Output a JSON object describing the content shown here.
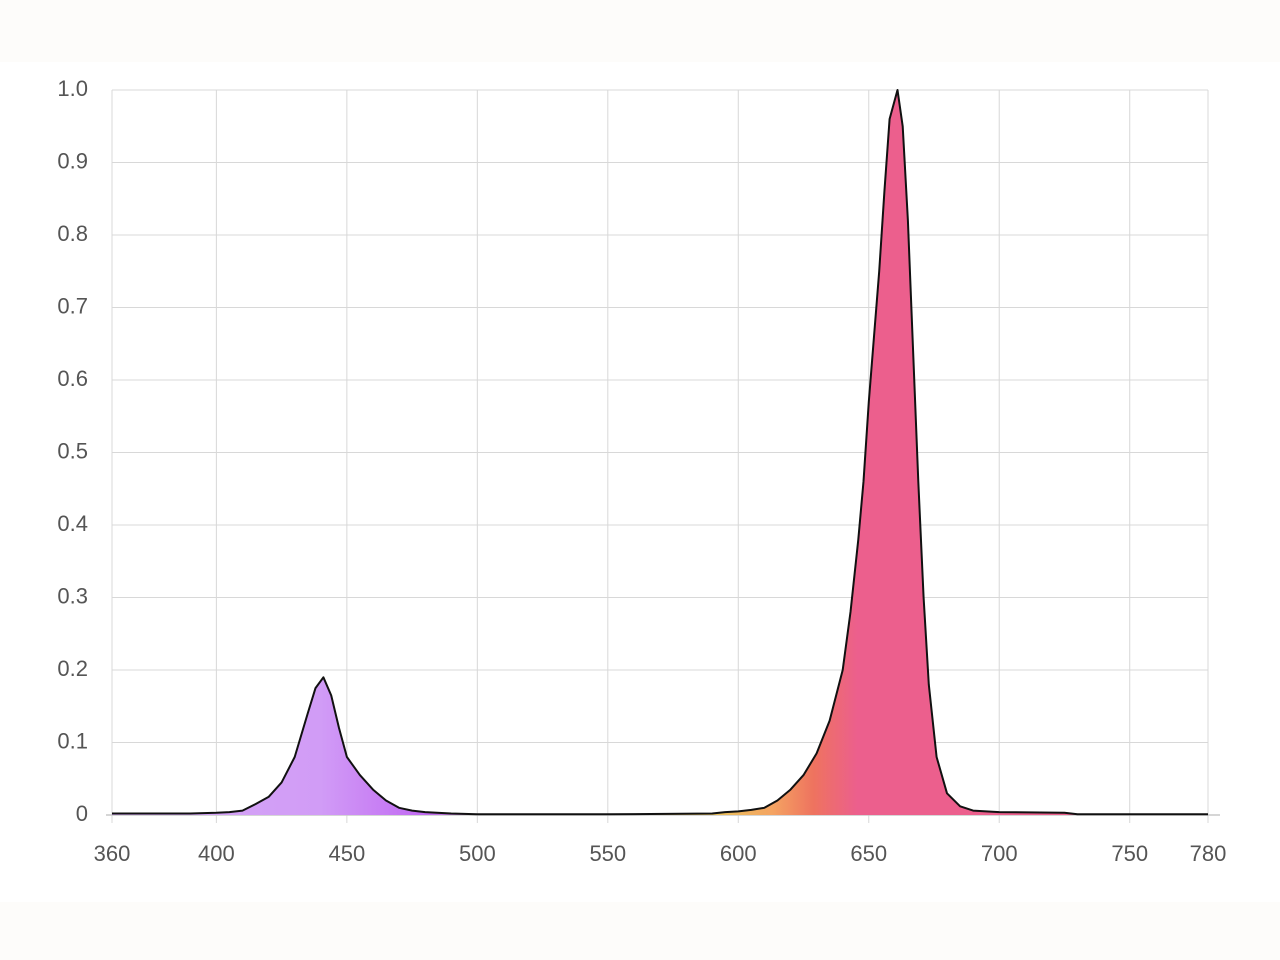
{
  "chart_data": {
    "type": "area",
    "x": [
      360,
      370,
      380,
      390,
      400,
      405,
      410,
      415,
      420,
      425,
      430,
      435,
      438,
      441,
      444,
      447,
      450,
      455,
      460,
      465,
      470,
      475,
      480,
      490,
      500,
      550,
      590,
      595,
      600,
      605,
      610,
      615,
      620,
      625,
      630,
      635,
      640,
      643,
      646,
      648,
      650,
      652,
      654,
      656,
      658,
      661,
      663,
      665,
      667,
      669,
      671,
      673,
      676,
      680,
      685,
      690,
      700,
      725,
      730,
      780
    ],
    "series": [
      {
        "color": "#111111",
        "values": [
          0.002,
          0.002,
          0.002,
          0.002,
          0.003,
          0.004,
          0.006,
          0.015,
          0.025,
          0.045,
          0.08,
          0.14,
          0.175,
          0.19,
          0.165,
          0.12,
          0.08,
          0.055,
          0.035,
          0.02,
          0.01,
          0.006,
          0.004,
          0.002,
          0.001,
          0.001,
          0.002,
          0.004,
          0.005,
          0.007,
          0.01,
          0.02,
          0.035,
          0.055,
          0.085,
          0.13,
          0.2,
          0.28,
          0.38,
          0.46,
          0.57,
          0.66,
          0.75,
          0.86,
          0.96,
          1.0,
          0.95,
          0.82,
          0.64,
          0.46,
          0.3,
          0.18,
          0.08,
          0.03,
          0.012,
          0.006,
          0.004,
          0.003,
          0.001,
          0.001
        ]
      }
    ],
    "xlim": [
      360,
      780
    ],
    "xticks": [
      360,
      400,
      450,
      500,
      550,
      600,
      650,
      700,
      750,
      780
    ],
    "ylim": [
      0,
      1
    ],
    "yticks": [
      0,
      0.1,
      0.2,
      0.3,
      0.4,
      0.5,
      0.6,
      0.7,
      0.8,
      0.9,
      {
        "value": 1,
        "label": "1.0"
      }
    ],
    "grid": true
  }
}
